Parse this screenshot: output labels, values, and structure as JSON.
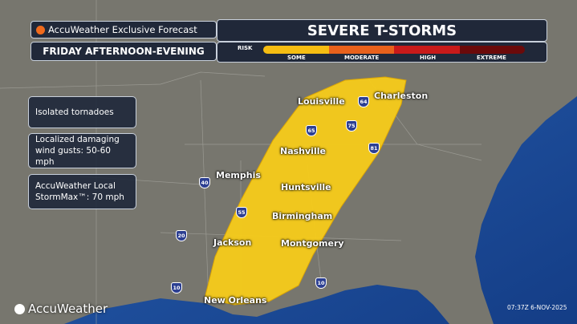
{
  "header": {
    "brand_line": "AccuWeather Exclusive Forecast",
    "period": "FRIDAY AFTERNOON-EVENING",
    "title": "SEVERE T-STORMS",
    "risk_label": "RISK",
    "risk_levels": [
      {
        "label": "SOME",
        "color": "#f5bd12"
      },
      {
        "label": "MODERATE",
        "color": "#e8611c"
      },
      {
        "label": "HIGH",
        "color": "#c81a1a"
      },
      {
        "label": "EXTREME",
        "color": "#6b0a0a"
      }
    ]
  },
  "info_boxes": [
    "Isolated tornadoes",
    "Localized damaging wind gusts: 50-60 mph",
    "AccuWeather Local StormMax™: 70 mph"
  ],
  "risk_area": {
    "level": "SOME",
    "color": "#f7cc1a"
  },
  "cities": [
    "Louisville",
    "Charleston",
    "Nashville",
    "Memphis",
    "Huntsville",
    "Birmingham",
    "Jackson",
    "Montgomery",
    "New Orleans"
  ],
  "interstates": [
    "40",
    "20",
    "10",
    "55",
    "65",
    "64",
    "75",
    "81",
    "10"
  ],
  "footer": {
    "logo": "AccuWeather",
    "timestamp": "07:37Z 6-NOV-2025"
  }
}
